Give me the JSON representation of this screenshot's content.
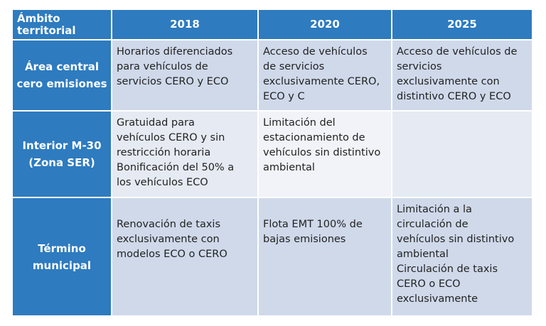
{
  "table": {
    "headers": [
      "Ámbito\nterritorial",
      "2018",
      "2020",
      "2025"
    ],
    "rows": [
      {
        "label": "Área central\ncero emisiones",
        "cells": [
          "Horarios diferenciados\npara vehículos de\nservicios CERO y ECO",
          "Acceso de vehículos\nde servicios\nexclusivamente CERO,\nECO y C",
          "Acceso de vehículos de\nservicios\nexclusivamente con\ndistintivo CERO y ECO"
        ]
      },
      {
        "label": "Interior M-30\n(Zona SER)",
        "cells": [
          "Gratuidad para\nvehículos CERO y sin\nrestricción horaria\nBonificación del 50% a\nlos vehículos ECO",
          "Limitación del\nestacionamiento de\nvehículos sin distintivo\nambiental",
          ""
        ]
      },
      {
        "label": "Término\nmunicipal",
        "cells": [
          "\n Renovación de taxis\nexclusivamente con\nmodelos ECO o CERO",
          "\nFlota EMT 100% de\nbajas emisiones",
          "Limitación a la\ncirculación de\nvehículos sin distintivo\nambiental\nCirculación de taxis\nCERO o ECO\nexclusivamente"
        ]
      }
    ]
  }
}
